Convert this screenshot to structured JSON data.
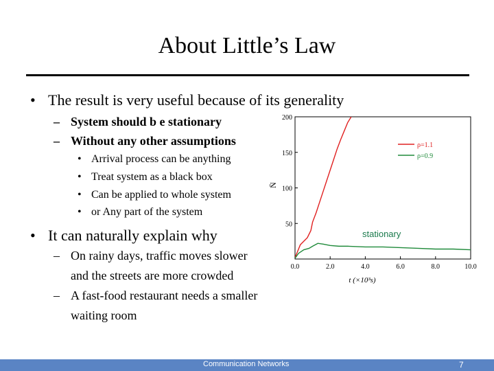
{
  "slide": {
    "title": "About Little’s Law",
    "bullets": [
      {
        "text": "The result is very useful because of its generality"
      },
      {
        "text": "It can naturally explain why"
      }
    ],
    "sub1": [
      "System should b e stationary",
      "Without any other assumptions"
    ],
    "sub1_items": [
      "Arrival process can be anything",
      "Treat system as a black box",
      "Can be applied to whole system",
      "or Any part of the system"
    ],
    "sub2": [
      {
        "line1": "On rainy days, traffic moves slower",
        "line2": "and the streets are more crowded"
      },
      {
        "line1": "A fast-food restaurant needs a smaller",
        "line2": "waiting room"
      }
    ],
    "annotation": "stationary"
  },
  "footer": {
    "center": "Communication Networks",
    "page": "7"
  },
  "colors": {
    "red": "#e02020",
    "green": "#1f8a3a",
    "footer": "#5a84c4",
    "annotation": "#1a7a4c"
  },
  "chart_data": {
    "type": "line",
    "xlabel": "t (×10³s)",
    "ylabel": "N̄",
    "xlim": [
      0,
      10
    ],
    "ylim": [
      0,
      200
    ],
    "xticks": [
      "0.0",
      "2.0",
      "4.0",
      "6.0",
      "8.0",
      "10.0"
    ],
    "yticks": [
      "50",
      "100",
      "150",
      "200"
    ],
    "legend_position": "top-right",
    "series": [
      {
        "name": "ρ=1.1",
        "color": "#e02020",
        "x": [
          0,
          0.1,
          0.3,
          0.5,
          0.7,
          0.9,
          1.0,
          1.2,
          1.4,
          1.6,
          1.8,
          2.0,
          2.2,
          2.4,
          2.6,
          2.8,
          3.0,
          3.2
        ],
        "y": [
          2,
          8,
          20,
          25,
          30,
          40,
          52,
          65,
          80,
          95,
          110,
          125,
          140,
          155,
          168,
          180,
          192,
          200
        ]
      },
      {
        "name": "ρ=0.9",
        "color": "#1f8a3a",
        "x": [
          0,
          0.2,
          0.5,
          0.8,
          1.0,
          1.3,
          1.6,
          2.0,
          2.5,
          3.0,
          4.0,
          5.0,
          6.0,
          7.0,
          8.0,
          9.0,
          10.0
        ],
        "y": [
          1,
          8,
          13,
          15,
          18,
          22,
          21,
          19,
          18,
          18,
          17,
          17,
          16,
          15,
          14,
          14,
          13
        ]
      }
    ]
  }
}
